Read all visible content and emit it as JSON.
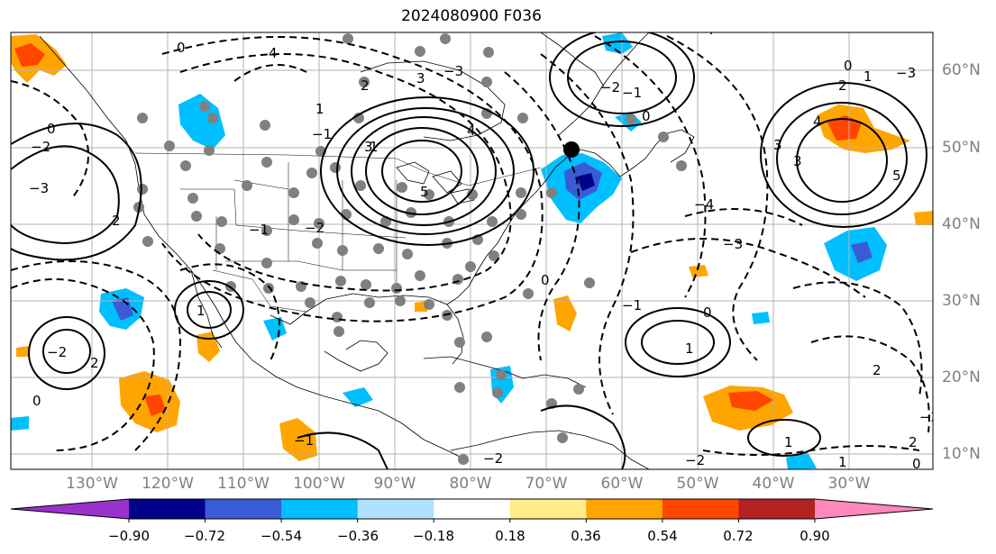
{
  "title": "2024080900 F036",
  "lon_labels": [
    "130°W",
    "120°W",
    "110°W",
    "100°W",
    "90°W",
    "80°W",
    "70°W",
    "60°W",
    "50°W",
    "40°W",
    "30°W"
  ],
  "lat_labels": [
    "60°N",
    "50°N",
    "40°N",
    "30°N",
    "20°N",
    "10°N"
  ],
  "colorbar": {
    "colors": [
      "#9932cc",
      "#00008b",
      "#3a5bd6",
      "#00bfff",
      "#b0e2ff",
      "#ffffff",
      "#ffec8b",
      "#ffa500",
      "#ff4500",
      "#b22222",
      "#ff88bb"
    ],
    "tick_labels": [
      "−0.90",
      "−0.72",
      "−0.54",
      "−0.36",
      "−0.18",
      "0.18",
      "0.36",
      "0.54",
      "0.72",
      "0.90"
    ]
  },
  "contour_labels": [
    "0",
    "4",
    "3",
    "2",
    "1",
    "−1",
    "−2",
    "−3",
    "−4",
    "0",
    "1",
    "2",
    "3",
    "4",
    "5",
    "−1",
    "−2",
    "−3",
    "0",
    "1",
    "2",
    "0",
    "−1",
    "−2",
    "−3",
    "−4",
    "0",
    "1",
    "2",
    "3",
    "−1",
    "−2",
    "1",
    "0",
    "−3",
    "1",
    "2",
    "3",
    "4",
    "5",
    "0",
    "−1",
    "−2",
    "2",
    "−2",
    "1",
    "0",
    "−2",
    "−1",
    "0",
    "1",
    "−1",
    "0",
    "−1",
    "0",
    "1",
    "−1",
    "0",
    "1",
    "−2",
    "−1",
    "0",
    "2",
    "−1"
  ]
}
